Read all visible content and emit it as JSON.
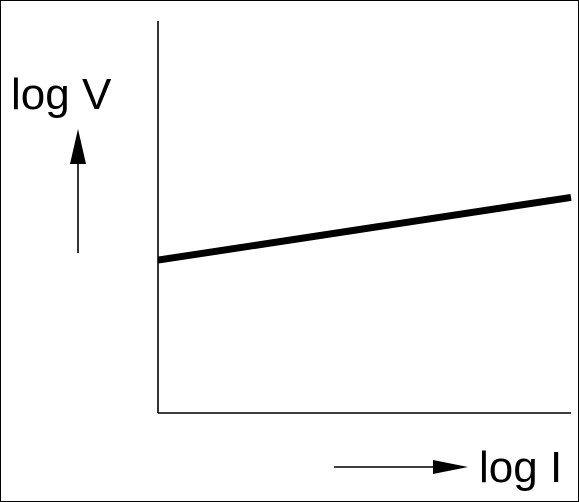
{
  "chart_data": {
    "type": "line",
    "title": "",
    "xlabel": "log I",
    "ylabel": "log V",
    "xlim": [
      0,
      1
    ],
    "ylim": [
      0,
      1
    ],
    "grid": false,
    "legend": "none",
    "line_color": "#000000",
    "series": [
      {
        "x": [
          0,
          1
        ],
        "y": [
          0.39,
          0.55
        ]
      }
    ]
  }
}
